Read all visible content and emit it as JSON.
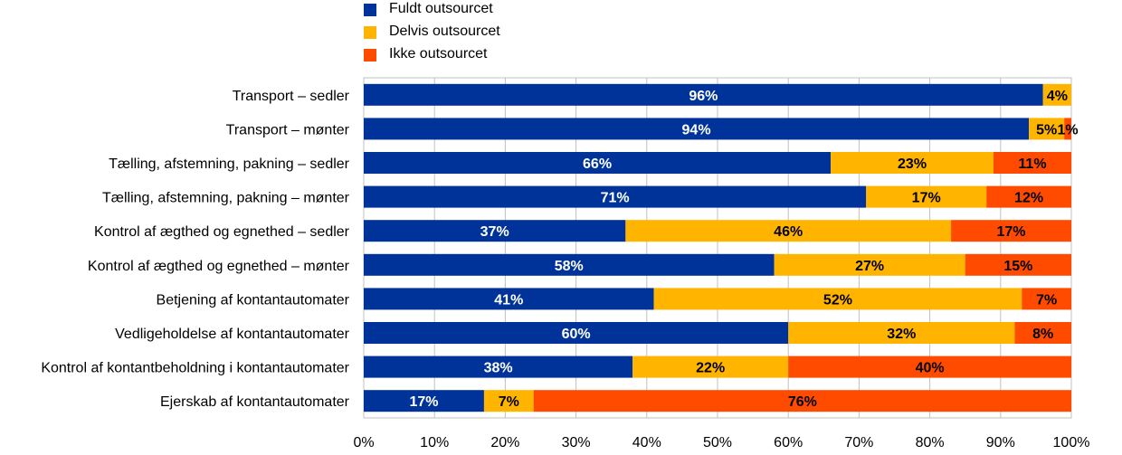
{
  "chart_data": {
    "type": "bar",
    "orientation": "horizontal",
    "stacked": true,
    "categories": [
      "Transport – sedler",
      "Transport – mønter",
      "Tælling, afstemning, pakning – sedler",
      "Tælling, afstemning, pakning – mønter",
      "Kontrol af ægthed og egnethed – sedler",
      "Kontrol af ægthed og egnethed – mønter",
      "Betjening af kontantautomater",
      "Vedligeholdelse af kontantautomater",
      "Kontrol af kontantbeholdning i kontantautomater ",
      "Ejerskab af kontantautomater"
    ],
    "series": [
      {
        "name": "Fuldt outsourcet",
        "color": "#003399",
        "label_color": "#ffffff",
        "values": [
          96,
          94,
          66,
          71,
          37,
          58,
          41,
          60,
          38,
          17
        ]
      },
      {
        "name": "Delvis outsourcet",
        "color": "#ffb400",
        "label_color": "#000000",
        "values": [
          4,
          5,
          23,
          17,
          46,
          27,
          52,
          32,
          22,
          7
        ]
      },
      {
        "name": "Ikke outsourcet",
        "color": "#ff4b00",
        "label_color": "#000000",
        "values": [
          0,
          1,
          11,
          12,
          17,
          15,
          7,
          8,
          40,
          76
        ]
      }
    ],
    "x_ticks": [
      "0%",
      "10%",
      "20%",
      "30%",
      "40%",
      "50%",
      "60%",
      "70%",
      "80%",
      "90%",
      "100%"
    ],
    "xlim": [
      0,
      100
    ],
    "grid": true,
    "legend_position": "top",
    "title": "",
    "xlabel": "",
    "ylabel": ""
  }
}
